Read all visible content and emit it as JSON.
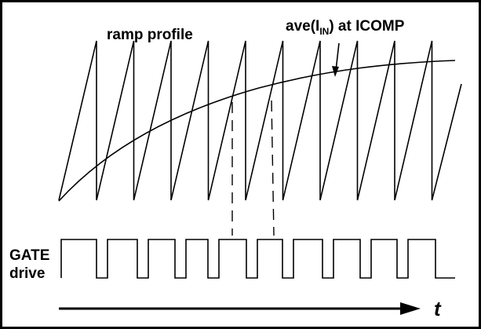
{
  "labels": {
    "ramp_profile": "ramp profile",
    "ave_prefix": "ave(I",
    "ave_subscript": "IN",
    "ave_suffix": ") at ICOMP",
    "gate_line1": "GATE",
    "gate_line2": "drive",
    "time_axis": "t"
  },
  "colors": {
    "ink": "#000000",
    "background": "#ffffff"
  }
}
